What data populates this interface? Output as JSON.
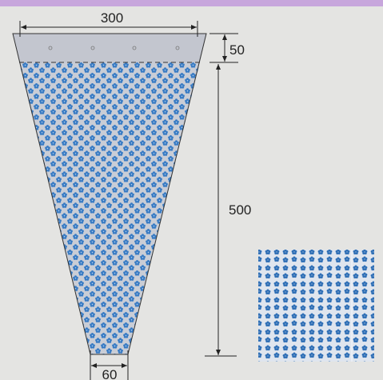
{
  "dimensions": {
    "top_width": 300,
    "top_band": 50,
    "height": 500,
    "bottom_width": 60
  }
}
